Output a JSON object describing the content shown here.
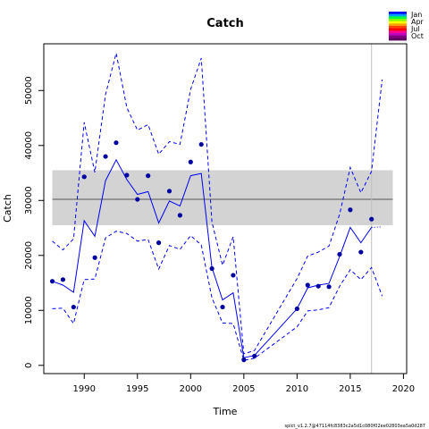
{
  "chart_data": {
    "type": "line",
    "title": "Catch",
    "xlabel": "Time",
    "ylabel": "Catch",
    "xlim": [
      1986.2,
      2020.3
    ],
    "ylim": [
      -1500,
      58500
    ],
    "x_ticks": [
      1990,
      1995,
      2000,
      2005,
      2010,
      2015,
      2020
    ],
    "y_ticks": [
      0,
      10000,
      20000,
      30000,
      40000,
      50000
    ],
    "reference_band": {
      "low": 25500,
      "high": 35500,
      "mean": 30200,
      "x_start": 1987,
      "x_end": 2019
    },
    "vertical_line_x": 2017,
    "observed": {
      "x": [
        1987,
        1988,
        1989,
        1990,
        1991,
        1992,
        1993,
        1994,
        1995,
        1996,
        1997,
        1998,
        1999,
        2000,
        2001,
        2002,
        2003,
        2004,
        2005,
        2006,
        2010,
        2011,
        2012,
        2013,
        2014,
        2015,
        2016,
        2017
      ],
      "y": [
        15300,
        15600,
        10600,
        34300,
        19600,
        38000,
        40500,
        34600,
        30200,
        34500,
        22300,
        31700,
        27300,
        37000,
        40200,
        17600,
        10600,
        16400,
        1000,
        1700,
        10300,
        14600,
        14400,
        14300,
        20200,
        28300,
        20600,
        26600
      ]
    },
    "fitted": {
      "x": [
        1987,
        1988,
        1989,
        1990,
        1991,
        1992,
        1993,
        1994,
        1995,
        1996,
        1997,
        1998,
        1999,
        2000,
        2001,
        2002,
        2003,
        2004,
        2005,
        2006,
        2010,
        2011,
        2012,
        2013,
        2014,
        2015,
        2016,
        2017
      ],
      "y": [
        15300,
        14600,
        13300,
        26300,
        23500,
        33600,
        37400,
        33800,
        31100,
        31600,
        25900,
        29900,
        29000,
        34500,
        34900,
        17800,
        11900,
        13200,
        1400,
        1800,
        10300,
        14100,
        14600,
        14900,
        19800,
        25100,
        22300,
        25100
      ]
    },
    "upper": {
      "x": [
        1987,
        1988,
        1989,
        1990,
        1991,
        1992,
        1993,
        1994,
        1995,
        1996,
        1997,
        1998,
        1999,
        2000,
        2001,
        2002,
        2003,
        2004,
        2005,
        2006,
        2010,
        2011,
        2012,
        2013,
        2014,
        2015,
        2016,
        2017,
        2018
      ],
      "y": [
        22600,
        21000,
        23000,
        44200,
        35100,
        49300,
        56800,
        46900,
        42800,
        43800,
        38400,
        40700,
        40200,
        50200,
        55900,
        26100,
        18200,
        23400,
        2100,
        2700,
        15800,
        19900,
        20600,
        21700,
        27500,
        36000,
        31400,
        35300,
        52000
      ]
    },
    "lower": {
      "x": [
        1987,
        1988,
        1989,
        1990,
        1991,
        1992,
        1993,
        1994,
        1995,
        1996,
        1997,
        1998,
        1999,
        2000,
        2001,
        2002,
        2003,
        2004,
        2005,
        2006,
        2010,
        2011,
        2012,
        2013,
        2014,
        2015,
        2016,
        2017,
        2018
      ],
      "y": [
        10300,
        10400,
        7600,
        15600,
        15700,
        23200,
        24400,
        24000,
        22600,
        22900,
        17500,
        21800,
        21100,
        23600,
        21900,
        12300,
        7700,
        7600,
        900,
        1300,
        7000,
        9900,
        10100,
        10500,
        14400,
        17400,
        15600,
        17800,
        12600
      ]
    },
    "forecast_tail": {
      "x": [
        2017,
        2018
      ],
      "y": [
        25100,
        25200
      ]
    },
    "legend": {
      "placement": "top-right",
      "entries": [
        "Jan",
        "Apr",
        "Jul",
        "Oct"
      ],
      "colors": [
        "#0000ff",
        "#00a0ff",
        "#00ff40",
        "#80ff00",
        "#ffff00",
        "#ffa000",
        "#ff4000",
        "#ff0000",
        "#ff0090",
        "#c000c0",
        "#800080",
        "#600060"
      ]
    },
    "colors": {
      "series": "#0000ff",
      "band": "#d3d3d3",
      "mean": "#808080",
      "vline": "#c0c0c0"
    },
    "footnote": "spict_v1.2.7@47114fc8383c2a5d1c080f02ee02803ea5a0d287"
  }
}
